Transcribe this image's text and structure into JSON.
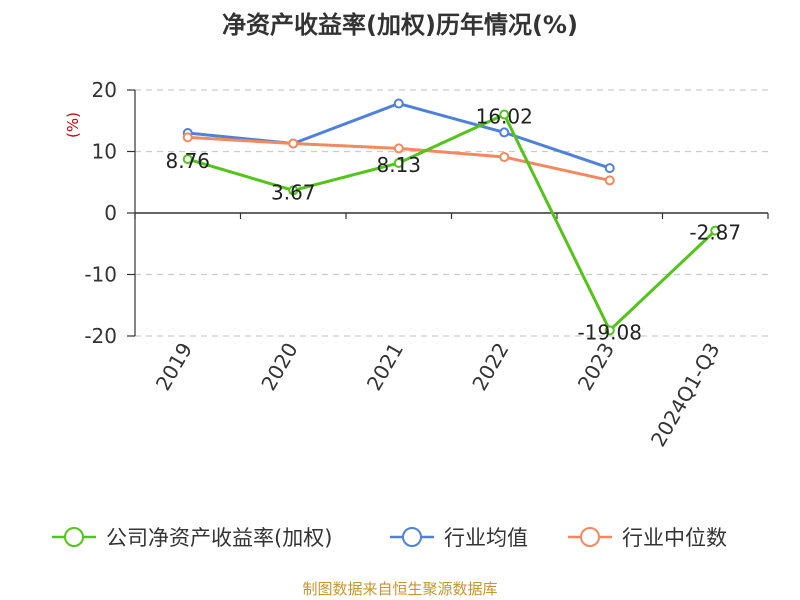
{
  "title": "净资产收益率(加权)历年情况(%)",
  "source": "制图数据来自恒生聚源数据库",
  "chart_data": {
    "type": "line",
    "title": "净资产收益率(加权)历年情况(%)",
    "ylabel": "(%)",
    "xlabel": "",
    "categories": [
      "2019",
      "2020",
      "2021",
      "2022",
      "2023",
      "2024Q1-Q3"
    ],
    "ylim": [
      -20,
      20
    ],
    "yticks": [
      20,
      10,
      0,
      -10,
      -20
    ],
    "grid": true,
    "legend_position": "bottom",
    "series": [
      {
        "name": "公司净资产收益率(加权)",
        "color": "#52c41a",
        "values": [
          8.76,
          3.67,
          8.13,
          16.02,
          -19.08,
          -2.87
        ],
        "labels": [
          "8.76",
          "3.67",
          "8.13",
          "16.02",
          "-19.08",
          "-2.87"
        ]
      },
      {
        "name": "行业均值",
        "color": "#4f81d9",
        "values": [
          13.0,
          11.3,
          17.8,
          13.1,
          7.3,
          null
        ]
      },
      {
        "name": "行业中位数",
        "color": "#f4895f",
        "values": [
          12.3,
          11.3,
          10.5,
          9.1,
          5.3,
          null
        ]
      }
    ]
  }
}
